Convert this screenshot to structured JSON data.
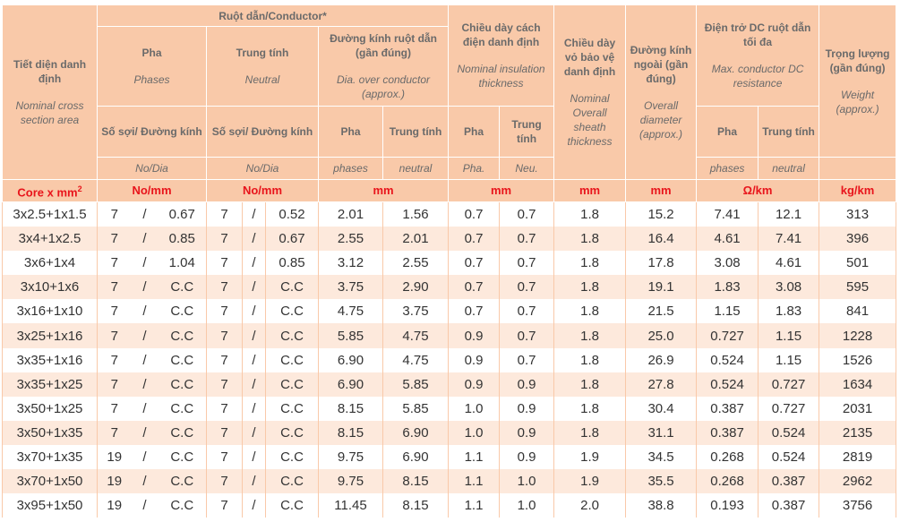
{
  "header": {
    "size": {
      "vi": "Tiết diện danh định",
      "en": "Nominal cross section area",
      "unit": "Core x mm",
      "unit_sup": "2"
    },
    "conductor": "Ruột dẫn/Conductor*",
    "phases": {
      "vi": "Pha",
      "en": "Phases",
      "sub": "Số sợi/ Đường kính",
      "sub_en": "No/Dia",
      "unit": "No/mm"
    },
    "neutral": {
      "vi": "Trung tính",
      "en": "Neutral",
      "sub": "Số sợi/ Đường kính",
      "sub_en": "No/Dia",
      "unit": "No/mm"
    },
    "dia_conductor": {
      "vi": "Đường kính ruột dẫn (gần đúng)",
      "en": "Dia. over conductor (approx.)",
      "pha": "Pha",
      "neu": "Trung tính",
      "pha_en": "phases",
      "neu_en": "neutral",
      "unit": "mm"
    },
    "insulation": {
      "vi": "Chiều dày cách điện danh định",
      "en": "Nominal insulation thickness",
      "pha": "Pha",
      "neu": "Trung tính",
      "pha_en": "Pha.",
      "neu_en": "Neu.",
      "unit": "mm"
    },
    "sheath": {
      "vi": "Chiều dày vỏ bảo vệ danh định",
      "en": "Nominal Overall sheath thickness",
      "unit": "mm"
    },
    "overall": {
      "vi": "Đường kính ngoài (gần đúng)",
      "en": "Overall diameter (approx.)",
      "unit": "mm"
    },
    "resistance": {
      "vi": "Điện trở DC ruột dẫn tối đa",
      "en": "Max. conductor DC resistance",
      "pha": "Pha",
      "neu": "Trung tính",
      "pha_en": "phases",
      "neu_en": "neutral",
      "unit": "Ω/km"
    },
    "weight": {
      "vi": "Trọng lượng (gần đúng)",
      "en": "Weight (approx.)",
      "unit": "kg/km"
    }
  },
  "separator": "/",
  "rows": [
    [
      "3x2.5+1x1.5",
      "7",
      "0.67",
      "7",
      "0.52",
      "2.01",
      "1.56",
      "0.7",
      "0.7",
      "1.8",
      "15.2",
      "7.41",
      "12.1",
      "313"
    ],
    [
      "3x4+1x2.5",
      "7",
      "0.85",
      "7",
      "0.67",
      "2.55",
      "2.01",
      "0.7",
      "0.7",
      "1.8",
      "16.4",
      "4.61",
      "7.41",
      "396"
    ],
    [
      "3x6+1x4",
      "7",
      "1.04",
      "7",
      "0.85",
      "3.12",
      "2.55",
      "0.7",
      "0.7",
      "1.8",
      "17.8",
      "3.08",
      "4.61",
      "501"
    ],
    [
      "3x10+1x6",
      "7",
      "C.C",
      "7",
      "C.C",
      "3.75",
      "2.90",
      "0.7",
      "0.7",
      "1.8",
      "19.1",
      "1.83",
      "3.08",
      "595"
    ],
    [
      "3x16+1x10",
      "7",
      "C.C",
      "7",
      "C.C",
      "4.75",
      "3.75",
      "0.7",
      "0.7",
      "1.8",
      "21.5",
      "1.15",
      "1.83",
      "841"
    ],
    [
      "3x25+1x16",
      "7",
      "C.C",
      "7",
      "C.C",
      "5.85",
      "4.75",
      "0.9",
      "0.7",
      "1.8",
      "25.0",
      "0.727",
      "1.15",
      "1228"
    ],
    [
      "3x35+1x16",
      "7",
      "C.C",
      "7",
      "C.C",
      "6.90",
      "4.75",
      "0.9",
      "0.7",
      "1.8",
      "26.9",
      "0.524",
      "1.15",
      "1526"
    ],
    [
      "3x35+1x25",
      "7",
      "C.C",
      "7",
      "C.C",
      "6.90",
      "5.85",
      "0.9",
      "0.9",
      "1.8",
      "27.8",
      "0.524",
      "0.727",
      "1634"
    ],
    [
      "3x50+1x25",
      "7",
      "C.C",
      "7",
      "C.C",
      "8.15",
      "5.85",
      "1.0",
      "0.9",
      "1.8",
      "30.4",
      "0.387",
      "0.727",
      "2031"
    ],
    [
      "3x50+1x35",
      "7",
      "C.C",
      "7",
      "C.C",
      "8.15",
      "6.90",
      "1.0",
      "0.9",
      "1.8",
      "31.1",
      "0.387",
      "0.524",
      "2135"
    ],
    [
      "3x70+1x35",
      "19",
      "C.C",
      "7",
      "C.C",
      "9.75",
      "6.90",
      "1.1",
      "0.9",
      "1.9",
      "34.5",
      "0.268",
      "0.524",
      "2819"
    ],
    [
      "3x70+1x50",
      "19",
      "C.C",
      "7",
      "C.C",
      "9.75",
      "8.15",
      "1.1",
      "1.0",
      "1.9",
      "35.5",
      "0.268",
      "0.387",
      "2962"
    ],
    [
      "3x95+1x50",
      "19",
      "C.C",
      "7",
      "C.C",
      "11.45",
      "8.15",
      "1.1",
      "1.0",
      "2.0",
      "38.8",
      "0.193",
      "0.387",
      "3756"
    ]
  ]
}
